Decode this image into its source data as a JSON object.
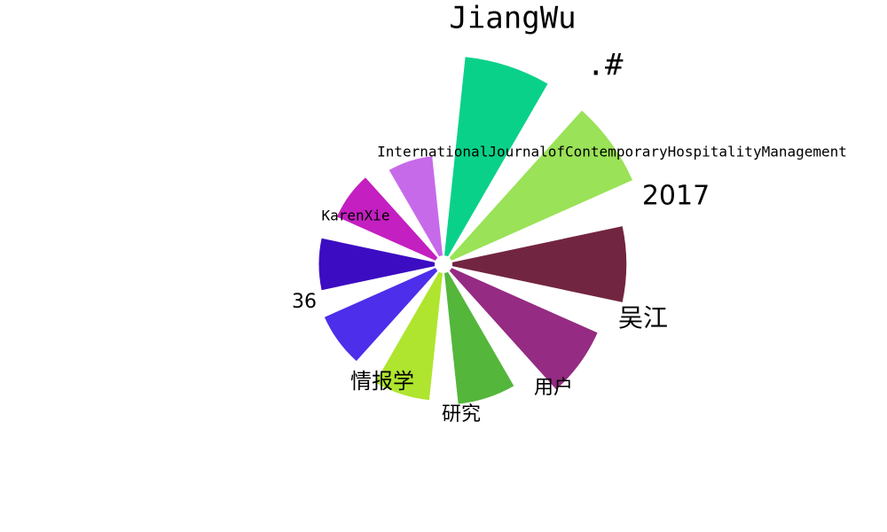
{
  "chart_data": {
    "type": "bar",
    "subtype": "polar-rose",
    "title": "",
    "xlabel": "",
    "ylabel": "",
    "grid": false,
    "legend": "none",
    "categories": [
      "JiangWu",
      ".#",
      "2017",
      "吴江",
      "用户",
      "研究",
      "情报学",
      "36",
      "KarenXie",
      "InternationalJournalofContemporaryHospitalityManagement"
    ],
    "values": [
      250,
      248,
      218,
      200,
      165,
      160,
      152,
      145,
      135,
      125
    ],
    "colors": [
      "#0ad18a",
      "#9ae257",
      "#722540",
      "#952b82",
      "#54b63b",
      "#afe52e",
      "#4d2eea",
      "#3c0cc2",
      "#c31fc1",
      "#c76aea"
    ]
  }
}
